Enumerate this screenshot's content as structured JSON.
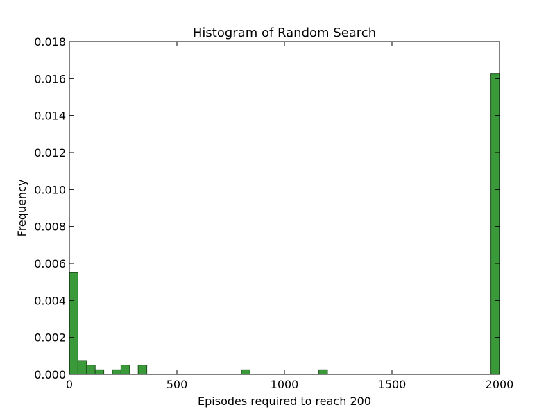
{
  "chart_data": {
    "type": "bar",
    "title": "Histogram of Random Search",
    "xlabel": "Episodes required to reach 200",
    "ylabel": "Frequency",
    "xlim": [
      0,
      2000
    ],
    "ylim": [
      0,
      0.018
    ],
    "x_ticks": [
      "0",
      "500",
      "1000",
      "1500",
      "2000"
    ],
    "y_ticks": [
      "0.000",
      "0.002",
      "0.004",
      "0.006",
      "0.008",
      "0.010",
      "0.012",
      "0.014",
      "0.016",
      "0.018"
    ],
    "bin_width": 40,
    "bins": [
      {
        "start": 0,
        "end": 40,
        "value": 0.0055
      },
      {
        "start": 40,
        "end": 80,
        "value": 0.00075
      },
      {
        "start": 80,
        "end": 120,
        "value": 0.0005
      },
      {
        "start": 120,
        "end": 160,
        "value": 0.00025
      },
      {
        "start": 200,
        "end": 240,
        "value": 0.00025
      },
      {
        "start": 240,
        "end": 280,
        "value": 0.0005
      },
      {
        "start": 320,
        "end": 360,
        "value": 0.0005
      },
      {
        "start": 800,
        "end": 840,
        "value": 0.00025
      },
      {
        "start": 1160,
        "end": 1200,
        "value": 0.00025
      },
      {
        "start": 1960,
        "end": 2000,
        "value": 0.01625
      }
    ],
    "bar_color": "#3a9a3a",
    "bar_edge_color": "#1f4d1f",
    "grid": false,
    "legend": "none"
  }
}
